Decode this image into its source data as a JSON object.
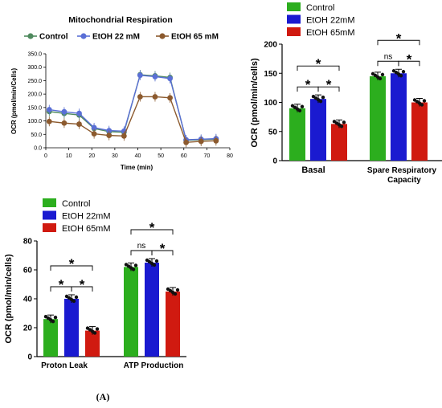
{
  "panel_label": "(A)",
  "chart_data": [
    {
      "type": "line",
      "title": "Mitochondrial Respiration",
      "xlabel": "Time (min)",
      "ylabel": "OCR (pmol/min/Cells)",
      "xlim": [
        0,
        80
      ],
      "ylim": [
        0,
        350
      ],
      "x_ticks": [
        "0",
        "10",
        "20",
        "30",
        "40",
        "50",
        "60",
        "70",
        "80"
      ],
      "y_ticks": [
        "0.0",
        "50.0",
        "100.0",
        "150.0",
        "200.0",
        "250.0",
        "300.0",
        "350.0"
      ],
      "x": [
        1.5,
        8,
        14.5,
        21,
        27.5,
        34,
        41,
        47.5,
        54,
        61,
        67.5,
        74
      ],
      "series": [
        {
          "name": "Control",
          "color": "#4f8a5e",
          "values": [
            135,
            128,
            122,
            72,
            60,
            58,
            272,
            268,
            262,
            28,
            30,
            32
          ]
        },
        {
          "name": "EtOH 22 mM",
          "color": "#5a6fd6",
          "values": [
            142,
            134,
            128,
            75,
            64,
            62,
            270,
            265,
            258,
            30,
            32,
            34
          ]
        },
        {
          "name": "EtOH 65 mM",
          "color": "#8c5a2e",
          "values": [
            98,
            92,
            88,
            52,
            46,
            44,
            190,
            190,
            186,
            20,
            24,
            26
          ]
        }
      ]
    },
    {
      "type": "bar",
      "ylabel": "OCR (pmol/min/cells)",
      "ylim": [
        0,
        200
      ],
      "y_ticks": [
        "0",
        "50",
        "100",
        "150",
        "200"
      ],
      "groups": [
        "Basal",
        "Spare  Respiratory Capacity"
      ],
      "group_labels": [
        "Basal",
        "Spare  Respiratory",
        "Capacity"
      ],
      "series": [
        {
          "name": "Control",
          "color": "#2cae1e",
          "values": [
            90,
            145
          ]
        },
        {
          "name": "EtOH 22mM",
          "color": "#1a1ad0",
          "values": [
            106,
            150
          ]
        },
        {
          "name": "EtOH 65mM",
          "color": "#d01a10",
          "values": [
            63,
            100
          ]
        }
      ],
      "significance": [
        "*",
        "*",
        "*",
        "ns",
        "*",
        "*"
      ]
    },
    {
      "type": "bar",
      "ylabel": "OCR (pmol/min/cells)",
      "ylim": [
        0,
        80
      ],
      "y_ticks": [
        "0",
        "20",
        "40",
        "60",
        "80"
      ],
      "groups": [
        "Proton Leak",
        "ATP Production"
      ],
      "series": [
        {
          "name": "Control",
          "color": "#2cae1e",
          "values": [
            26,
            62
          ]
        },
        {
          "name": "EtOH 22mM",
          "color": "#1a1ad0",
          "values": [
            40,
            65
          ]
        },
        {
          "name": "EtOH 65mM",
          "color": "#d01a10",
          "values": [
            18,
            45
          ]
        }
      ],
      "significance": [
        "*",
        "*",
        "*",
        "ns",
        "*",
        "*"
      ]
    }
  ]
}
